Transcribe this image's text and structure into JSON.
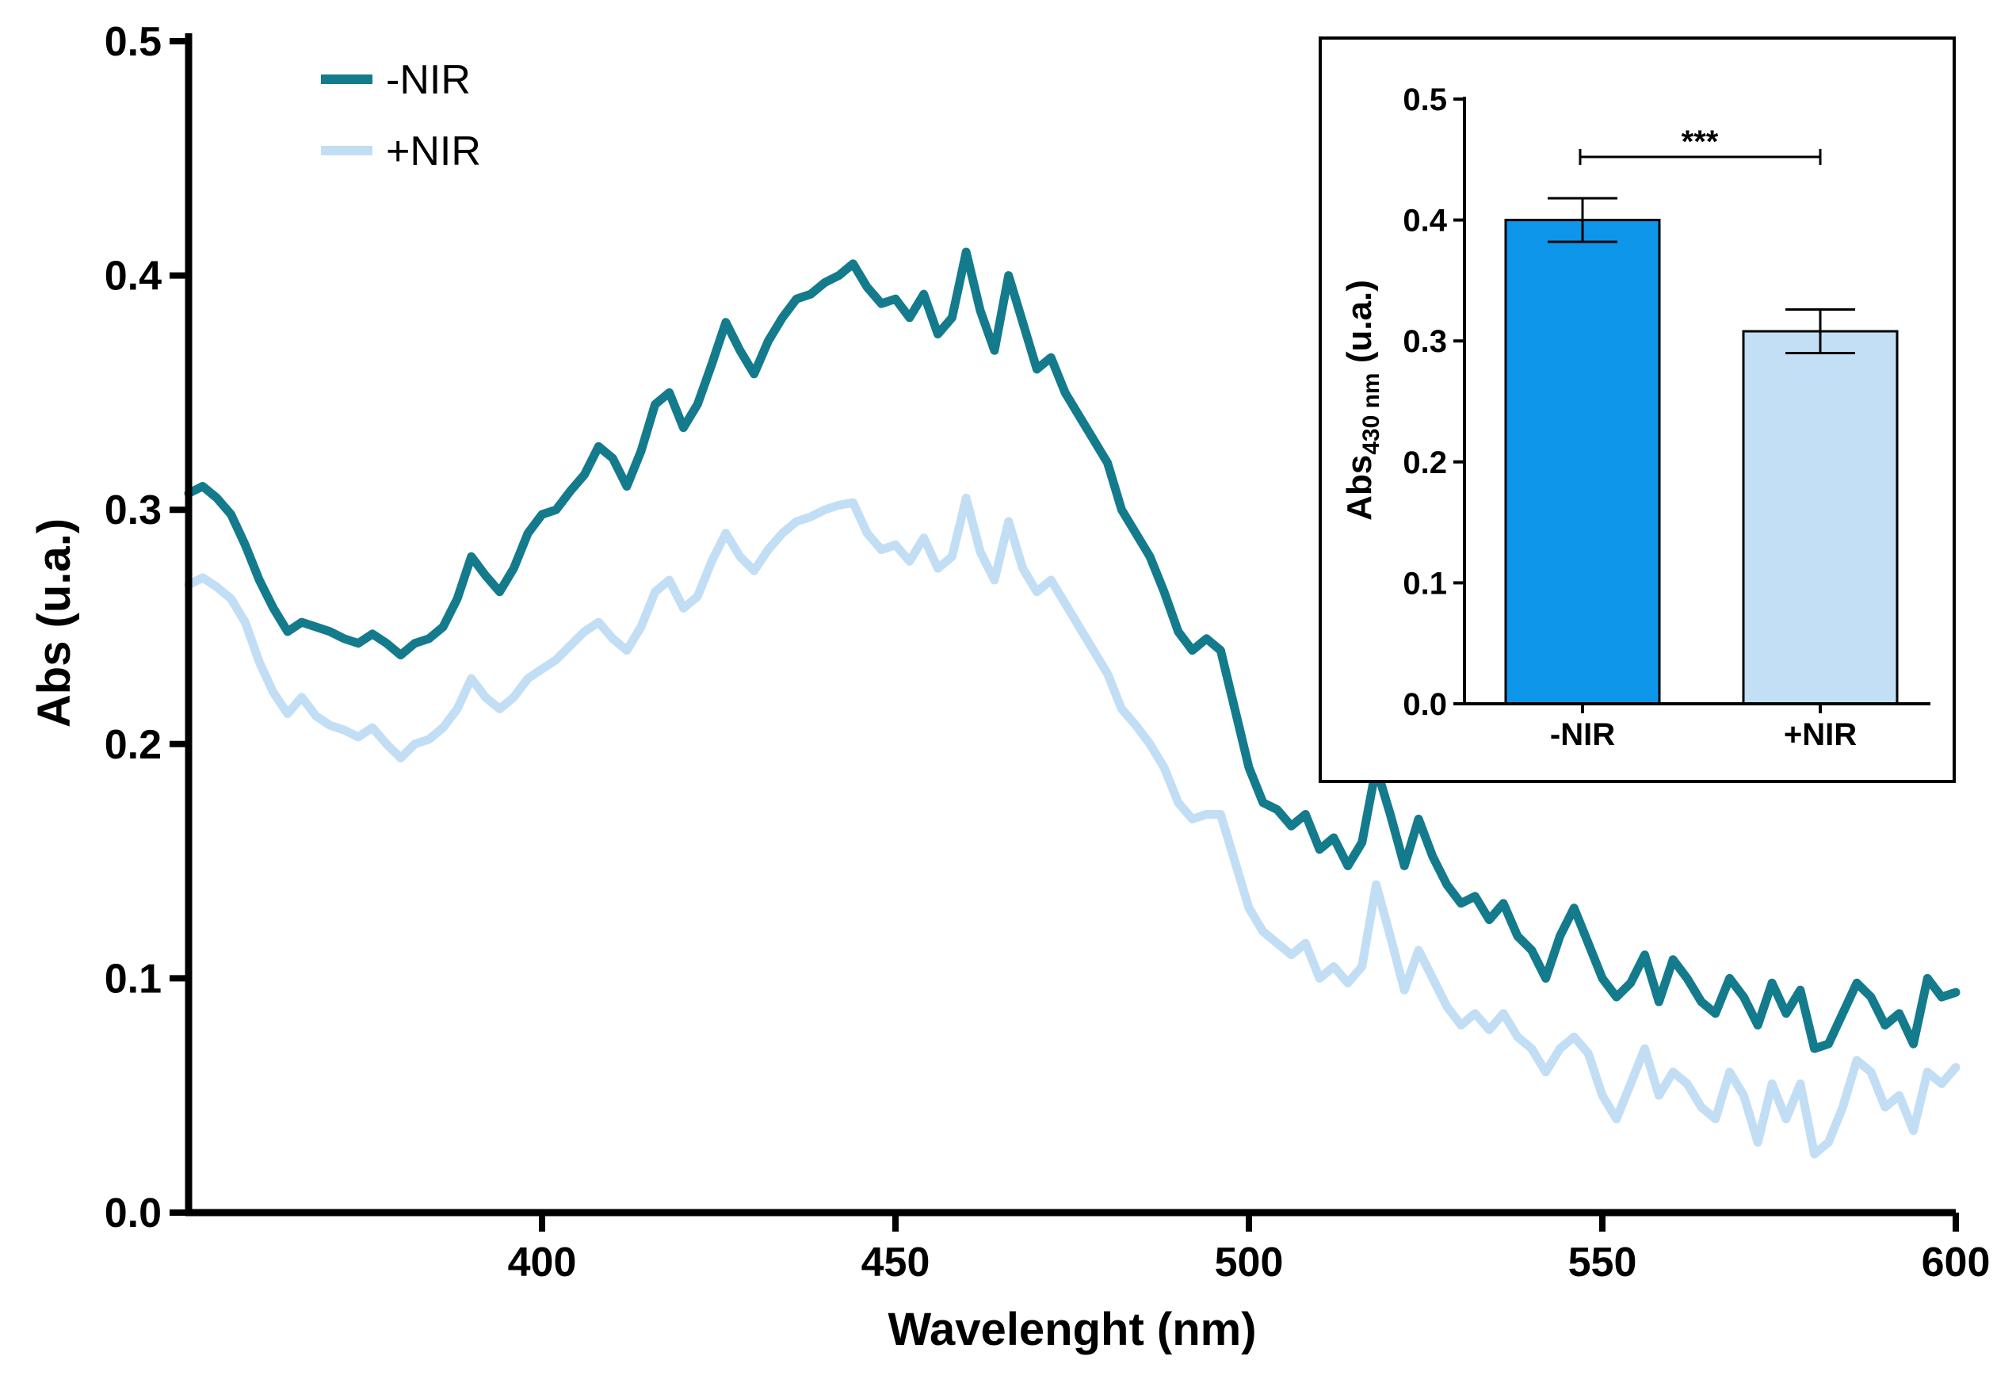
{
  "chart_data": [
    {
      "type": "line",
      "title": "",
      "xlabel": "Wavelenght (nm)",
      "ylabel": "Abs (u.a.)",
      "xlim": [
        350,
        600
      ],
      "ylim": [
        0.0,
        0.5
      ],
      "xticks": [
        400,
        450,
        500,
        550,
        600
      ],
      "xtick_labels": [
        "400",
        "450",
        "500",
        "550",
        "600"
      ],
      "yticks": [
        0.0,
        0.1,
        0.2,
        0.3,
        0.4,
        0.5
      ],
      "ytick_labels": [
        "0.0",
        "0.1",
        "0.2",
        "0.3",
        "0.4",
        "0.5"
      ],
      "grid": false,
      "legend": "top-left",
      "x": [
        350,
        352,
        354,
        356,
        358,
        360,
        362,
        364,
        366,
        368,
        370,
        372,
        374,
        376,
        378,
        380,
        382,
        384,
        386,
        388,
        390,
        392,
        394,
        396,
        398,
        400,
        402,
        404,
        406,
        408,
        410,
        412,
        414,
        416,
        418,
        420,
        422,
        424,
        426,
        428,
        430,
        432,
        434,
        436,
        438,
        440,
        442,
        444,
        446,
        448,
        450,
        452,
        454,
        456,
        458,
        460,
        462,
        464,
        466,
        468,
        470,
        472,
        474,
        476,
        478,
        480,
        482,
        484,
        486,
        488,
        490,
        492,
        494,
        496,
        498,
        500,
        502,
        504,
        506,
        508,
        510,
        512,
        514,
        516,
        518,
        520,
        522,
        524,
        526,
        528,
        530,
        532,
        534,
        536,
        538,
        540,
        542,
        544,
        546,
        548,
        550,
        552,
        554,
        556,
        558,
        560,
        562,
        564,
        566,
        568,
        570,
        572,
        574,
        576,
        578,
        580,
        582,
        584,
        586,
        588,
        590,
        592,
        594,
        596,
        598,
        600
      ],
      "series": [
        {
          "name": "-NIR",
          "color": "#137b8c",
          "values": [
            0.307,
            0.31,
            0.305,
            0.298,
            0.285,
            0.27,
            0.258,
            0.248,
            0.252,
            0.25,
            0.248,
            0.245,
            0.243,
            0.247,
            0.243,
            0.238,
            0.243,
            0.245,
            0.25,
            0.262,
            0.28,
            0.272,
            0.265,
            0.275,
            0.29,
            0.298,
            0.3,
            0.308,
            0.315,
            0.327,
            0.322,
            0.31,
            0.325,
            0.345,
            0.35,
            0.335,
            0.345,
            0.362,
            0.38,
            0.368,
            0.358,
            0.372,
            0.382,
            0.39,
            0.392,
            0.397,
            0.4,
            0.405,
            0.395,
            0.388,
            0.39,
            0.382,
            0.392,
            0.375,
            0.382,
            0.41,
            0.385,
            0.368,
            0.4,
            0.38,
            0.36,
            0.365,
            0.35,
            0.34,
            0.33,
            0.32,
            0.3,
            0.29,
            0.28,
            0.265,
            0.248,
            0.24,
            0.245,
            0.24,
            0.215,
            0.19,
            0.175,
            0.172,
            0.165,
            0.17,
            0.155,
            0.16,
            0.148,
            0.158,
            0.19,
            0.17,
            0.148,
            0.168,
            0.152,
            0.14,
            0.132,
            0.135,
            0.125,
            0.132,
            0.118,
            0.112,
            0.1,
            0.118,
            0.13,
            0.115,
            0.1,
            0.092,
            0.098,
            0.11,
            0.09,
            0.108,
            0.1,
            0.09,
            0.085,
            0.1,
            0.092,
            0.08,
            0.098,
            0.085,
            0.095,
            0.07,
            0.072,
            0.085,
            0.098,
            0.092,
            0.08,
            0.085,
            0.072,
            0.1,
            0.092,
            0.094
          ]
        },
        {
          "name": "+NIR",
          "color": "#c2def5",
          "values": [
            0.268,
            0.271,
            0.267,
            0.262,
            0.252,
            0.235,
            0.222,
            0.213,
            0.22,
            0.212,
            0.208,
            0.206,
            0.203,
            0.207,
            0.2,
            0.194,
            0.2,
            0.202,
            0.207,
            0.215,
            0.228,
            0.22,
            0.215,
            0.22,
            0.228,
            0.232,
            0.236,
            0.242,
            0.248,
            0.252,
            0.245,
            0.24,
            0.25,
            0.265,
            0.27,
            0.258,
            0.263,
            0.278,
            0.29,
            0.28,
            0.274,
            0.283,
            0.29,
            0.295,
            0.297,
            0.3,
            0.302,
            0.303,
            0.29,
            0.283,
            0.285,
            0.278,
            0.288,
            0.275,
            0.28,
            0.305,
            0.282,
            0.27,
            0.295,
            0.275,
            0.265,
            0.27,
            0.26,
            0.25,
            0.24,
            0.23,
            0.215,
            0.208,
            0.2,
            0.19,
            0.175,
            0.168,
            0.17,
            0.17,
            0.15,
            0.13,
            0.12,
            0.115,
            0.11,
            0.115,
            0.1,
            0.105,
            0.098,
            0.105,
            0.14,
            0.118,
            0.095,
            0.112,
            0.1,
            0.088,
            0.08,
            0.085,
            0.078,
            0.085,
            0.075,
            0.07,
            0.06,
            0.07,
            0.075,
            0.068,
            0.05,
            0.04,
            0.055,
            0.07,
            0.05,
            0.06,
            0.055,
            0.045,
            0.04,
            0.06,
            0.05,
            0.03,
            0.055,
            0.04,
            0.055,
            0.025,
            0.03,
            0.045,
            0.065,
            0.06,
            0.045,
            0.05,
            0.035,
            0.06,
            0.055,
            0.062
          ]
        }
      ]
    },
    {
      "type": "bar",
      "title": "",
      "xlabel": "",
      "ylabel": "Abs",
      "ylabel_sub": "430 nm",
      "ylabel_suffix": " (u.a.)",
      "categories": [
        "-NIR",
        "+NIR"
      ],
      "values": [
        0.4,
        0.308
      ],
      "errors": [
        0.018,
        0.018
      ],
      "colors": [
        "#0d96ea",
        "#c3dff6"
      ],
      "ylim": [
        0.0,
        0.5
      ],
      "yticks": [
        0.0,
        0.1,
        0.2,
        0.3,
        0.4,
        0.5
      ],
      "ytick_labels": [
        "0.0",
        "0.1",
        "0.2",
        "0.3",
        "0.4",
        "0.5"
      ],
      "significance": "***",
      "grid": false
    }
  ]
}
